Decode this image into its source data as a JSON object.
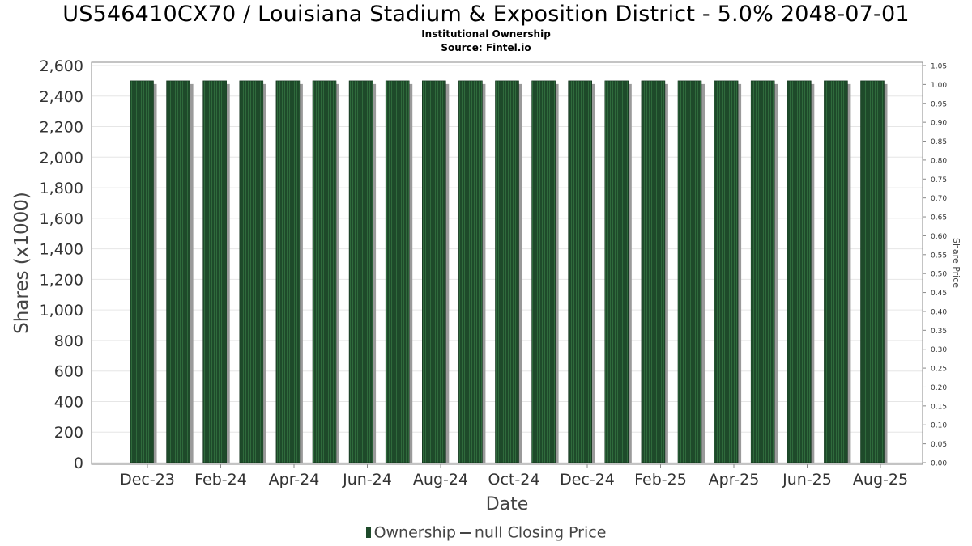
{
  "title": "US546410CX70 / Louisiana Stadium & Exposition District - 5.0% 2048-07-01",
  "subtitle_1": "Institutional Ownership",
  "subtitle_2": "Source: Fintel.io",
  "legend": {
    "ownership_label": "Ownership",
    "closing_price_label": "null Closing Price"
  },
  "colors": {
    "bar": "#1e4a2a",
    "bar_stripe": "#2f6a3c",
    "bar_shadow": "#9a9a9a",
    "grid": "#e6e6e6",
    "axis": "#888888"
  },
  "chart_data": {
    "type": "bar",
    "xlabel": "Date",
    "ylabel": "Shares (x1000)",
    "y2label": "Share Price",
    "ylim": [
      0,
      2600
    ],
    "y2lim": [
      0,
      1.05
    ],
    "yticks": [
      "0",
      "200",
      "400",
      "600",
      "800",
      "1,000",
      "1,200",
      "1,400",
      "1,600",
      "1,800",
      "2,000",
      "2,200",
      "2,400",
      "2,600"
    ],
    "y2ticks": [
      "0.00",
      "0.05",
      "0.10",
      "0.15",
      "0.20",
      "0.25",
      "0.30",
      "0.35",
      "0.40",
      "0.45",
      "0.50",
      "0.55",
      "0.60",
      "0.65",
      "0.70",
      "0.75",
      "0.80",
      "0.85",
      "0.90",
      "0.95",
      "1.00",
      "1.05"
    ],
    "xticks": [
      "Dec-23",
      "Feb-24",
      "Apr-24",
      "Jun-24",
      "Aug-24",
      "Oct-24",
      "Dec-24",
      "Feb-25",
      "Apr-25",
      "Jun-25",
      "Aug-25"
    ],
    "grid": true,
    "legend_position": "bottom",
    "series": [
      {
        "name": "Ownership",
        "values": [
          2500,
          2500,
          2500,
          2500,
          2500,
          2500,
          2500,
          2500,
          2500,
          2500,
          2500,
          2500,
          2500,
          2500,
          2500,
          2500,
          2500,
          2500,
          2500,
          2500,
          2500
        ]
      }
    ]
  }
}
